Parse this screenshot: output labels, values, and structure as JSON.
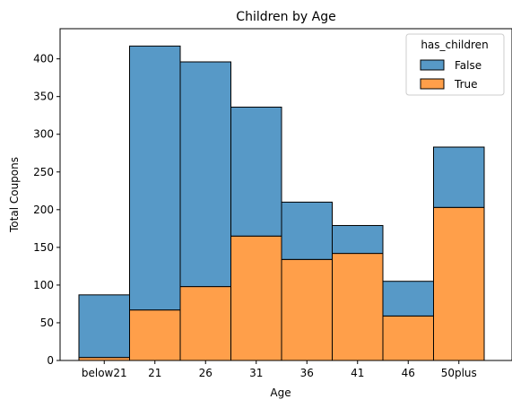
{
  "chart_data": {
    "type": "bar",
    "stacked": true,
    "title": "Children by Age",
    "xlabel": "Age",
    "ylabel": "Total Coupons",
    "categories": [
      "below21",
      "21",
      "26",
      "31",
      "36",
      "41",
      "46",
      "50plus"
    ],
    "series": [
      {
        "name": "True",
        "color": "#ff9f4a",
        "values": [
          4,
          67,
          98,
          165,
          134,
          142,
          59,
          203
        ]
      },
      {
        "name": "False",
        "color": "#5799c7",
        "values": [
          83,
          350,
          298,
          171,
          76,
          37,
          46,
          80
        ]
      }
    ],
    "ylim": [
      0,
      440
    ],
    "yticks": [
      0,
      50,
      100,
      150,
      200,
      250,
      300,
      350,
      400
    ],
    "grid": false,
    "legend": {
      "title": "has_children",
      "placement": "top-right",
      "entries": [
        "False",
        "True"
      ]
    }
  }
}
